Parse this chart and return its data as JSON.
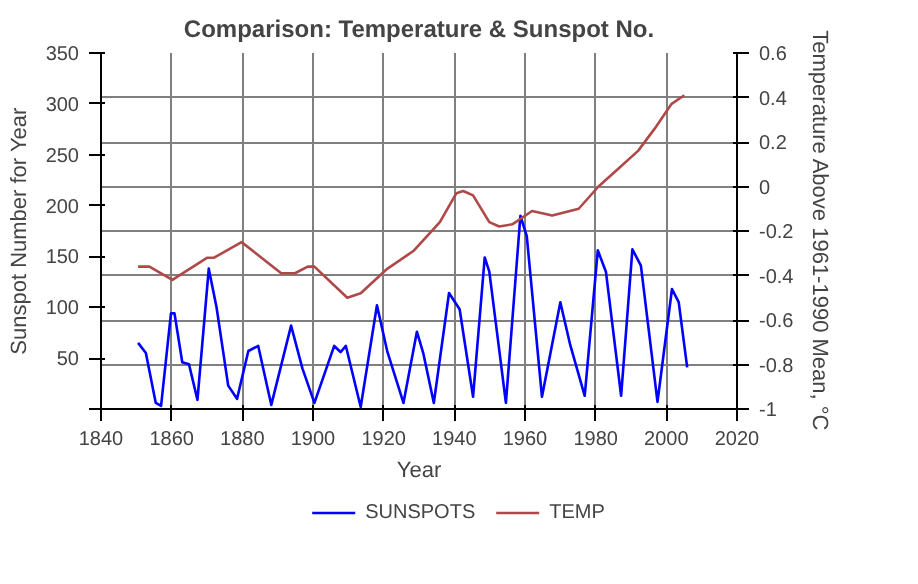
{
  "chart_data": {
    "type": "line",
    "title": "Comparison: Temperature & Sunspot No.",
    "xlabel": "Year",
    "ylabel": "Sunspot Number for Year",
    "y2label": "Temperature Above 1961-1990 Mean, °C",
    "xlim": [
      1840,
      2020
    ],
    "xticks": [
      1840,
      1860,
      1880,
      1900,
      1920,
      1940,
      1960,
      1980,
      2000,
      2020
    ],
    "ylim": [
      0,
      350
    ],
    "yticks": [
      {
        "value": 0,
        "label": null
      },
      50,
      100,
      150,
      200,
      250,
      300,
      350
    ],
    "y2lim": [
      -1,
      0.6
    ],
    "y2ticks": [
      -1,
      -0.8,
      -0.6,
      -0.4,
      -0.2,
      0,
      0.2,
      0.4,
      0.6
    ],
    "grid": true,
    "legend": "bottom",
    "line_style": "solid",
    "marker": "none",
    "series": [
      {
        "name": "SUNSPOTS",
        "color": "#0000ff",
        "x": [
          1850.5,
          1852.7,
          1855.5,
          1857,
          1859.8,
          1860.8,
          1863,
          1864.9,
          1867.3,
          1870.5,
          1872.7,
          1876,
          1878.5,
          1881.7,
          1884.5,
          1888.2,
          1893.8,
          1897,
          1900.4,
          1906,
          1907.8,
          1909.3,
          1913.5,
          1918.1,
          1921,
          1925.6,
          1929.4,
          1931.2,
          1934.2,
          1938.5,
          1941.5,
          1945.3,
          1948.6,
          1949.9,
          1954.6,
          1958.7,
          1960.5,
          1964.8,
          1970,
          1972.8,
          1976.9,
          1980.6,
          1982.9,
          1987.2,
          1990.4,
          1992.8,
          1997.5,
          2001.6,
          2003.5,
          2005.9
        ],
        "values": [
          65,
          55,
          6,
          3,
          94,
          94,
          46,
          44,
          9,
          138,
          100,
          23,
          10,
          57,
          62,
          4,
          82,
          40,
          6,
          62,
          56,
          62,
          2,
          102,
          57,
          6,
          76,
          55,
          6,
          114,
          98,
          12,
          149,
          135,
          6,
          190,
          170,
          12,
          105,
          63,
          13,
          156,
          135,
          13,
          157,
          141,
          7,
          118,
          105,
          41
        ]
      },
      {
        "name": "TEMP",
        "color": "#b04848",
        "axis": "y2",
        "x": [
          1850.5,
          1853.7,
          1860.2,
          1870.1,
          1872,
          1879.8,
          1891,
          1894.9,
          1898.5,
          1900.4,
          1909.7,
          1913.5,
          1921,
          1928.4,
          1935.9,
          1940.6,
          1942.5,
          1945.3,
          1949.9,
          1952.7,
          1956.4,
          1962,
          1967.7,
          1975.2,
          1980.8,
          1986.4,
          1992,
          1996.7,
          2001.4,
          2005.1
        ],
        "values": [
          -0.36,
          -0.36,
          -0.42,
          -0.32,
          -0.32,
          -0.25,
          -0.39,
          -0.39,
          -0.36,
          -0.36,
          -0.5,
          -0.48,
          -0.37,
          -0.29,
          -0.16,
          -0.03,
          -0.02,
          -0.04,
          -0.16,
          -0.18,
          -0.17,
          -0.11,
          -0.13,
          -0.1,
          0.0,
          0.08,
          0.16,
          0.26,
          0.37,
          0.41
        ]
      }
    ]
  }
}
